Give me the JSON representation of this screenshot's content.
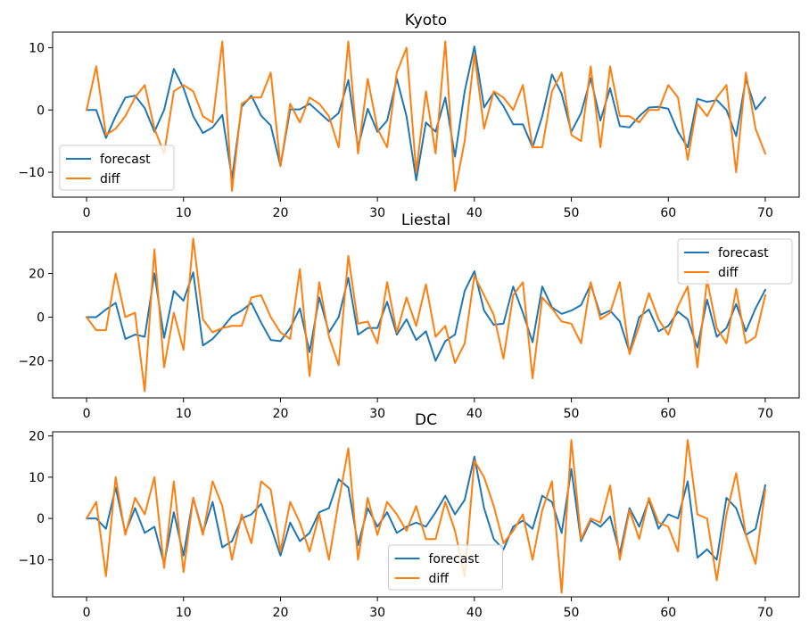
{
  "colors": {
    "forecast": "#1f77b4",
    "diff": "#ff7f0e"
  },
  "chart_data": [
    {
      "type": "line",
      "title": "Kyoto",
      "xlim": [
        -3.5,
        73.5
      ],
      "ylim": [
        -14,
        12.5
      ],
      "xticks": [
        0,
        10,
        20,
        30,
        40,
        50,
        60,
        70
      ],
      "yticks": [
        -10,
        0,
        10
      ],
      "legend_position": "lower-left",
      "grid": false,
      "x": [
        0,
        1,
        2,
        3,
        4,
        5,
        6,
        7,
        8,
        9,
        10,
        11,
        12,
        13,
        14,
        15,
        16,
        17,
        18,
        19,
        20,
        21,
        22,
        23,
        24,
        25,
        26,
        27,
        28,
        29,
        30,
        31,
        32,
        33,
        34,
        35,
        36,
        37,
        38,
        39,
        40,
        41,
        42,
        43,
        44,
        45,
        46,
        47,
        48,
        49,
        50,
        51,
        52,
        53,
        54,
        55,
        56,
        57,
        58,
        59,
        60,
        61,
        62,
        63,
        64,
        65,
        66,
        67,
        68,
        69,
        70
      ],
      "series": [
        {
          "name": "forecast",
          "color_key": "forecast",
          "values": [
            0,
            0,
            -4.5,
            -1,
            2,
            2.3,
            0.3,
            -3.5,
            0,
            6.6,
            3.5,
            -1,
            -3.7,
            -2.8,
            -0.8,
            -11,
            0.5,
            2.3,
            -0.9,
            -2.5,
            -9,
            0.1,
            0.1,
            1,
            -0.4,
            -1.8,
            -0.5,
            4.8,
            -6,
            0.2,
            -3.5,
            -1.7,
            5,
            -1,
            -11.3,
            -2,
            -3.5,
            2,
            -7.5,
            3,
            10.2,
            0.4,
            2.8,
            0.6,
            -2.3,
            -2.3,
            -6,
            -1,
            5.7,
            2.6,
            -3.5,
            -0.5,
            5.1,
            -1.7,
            3.5,
            -2.6,
            -2.8,
            -1,
            0.4,
            0.5,
            0.2,
            -3.5,
            -6,
            1.8,
            1.3,
            1.6,
            0,
            -4.2,
            5,
            0.1,
            2
          ]
        },
        {
          "name": "diff",
          "color_key": "diff",
          "values": [
            0,
            7,
            -4,
            -3,
            -1,
            2,
            4,
            -3,
            -7,
            3,
            4,
            3,
            -1,
            -2,
            11,
            -13,
            1,
            2,
            2,
            6,
            -9,
            1,
            -2,
            2,
            1,
            -1,
            -6,
            11,
            -7,
            5,
            -3,
            -6,
            6,
            10,
            -10,
            3,
            -7,
            11,
            -13,
            -5,
            9,
            -3,
            3,
            2,
            0,
            4,
            -6,
            -6,
            3,
            6,
            -4,
            -5,
            7,
            -6,
            7,
            -1,
            -1,
            -2,
            0,
            0,
            4,
            2,
            -8,
            1,
            -1,
            2,
            4,
            -10,
            6,
            -3,
            -7
          ]
        }
      ]
    },
    {
      "type": "line",
      "title": "Liestal",
      "xlim": [
        -3.5,
        73.5
      ],
      "ylim": [
        -37,
        39
      ],
      "xticks": [
        0,
        10,
        20,
        30,
        40,
        50,
        60,
        70
      ],
      "yticks": [
        -20,
        0,
        20
      ],
      "legend_position": "upper-right",
      "grid": false,
      "x": [
        0,
        1,
        2,
        3,
        4,
        5,
        6,
        7,
        8,
        9,
        10,
        11,
        12,
        13,
        14,
        15,
        16,
        17,
        18,
        19,
        20,
        21,
        22,
        23,
        24,
        25,
        26,
        27,
        28,
        29,
        30,
        31,
        32,
        33,
        34,
        35,
        36,
        37,
        38,
        39,
        40,
        41,
        42,
        43,
        44,
        45,
        46,
        47,
        48,
        49,
        50,
        51,
        52,
        53,
        54,
        55,
        56,
        57,
        58,
        59,
        60,
        61,
        62,
        63,
        64,
        65,
        66,
        67,
        68,
        69,
        70
      ],
      "series": [
        {
          "name": "forecast",
          "color_key": "forecast",
          "values": [
            0,
            0,
            3.5,
            6.5,
            -10,
            -8,
            -9,
            20,
            -9.5,
            12,
            7.5,
            20.5,
            -13,
            -10,
            -5,
            0.5,
            3,
            6.5,
            -2.5,
            -10.5,
            -11,
            -5,
            4,
            -16,
            9,
            -7,
            0,
            18,
            -8,
            -5,
            -5,
            7,
            -8,
            -1,
            -10.5,
            -6.5,
            -20,
            -11,
            -8,
            12,
            21,
            3,
            -3.5,
            -3,
            14,
            2,
            -11.5,
            14,
            4.5,
            1.5,
            3,
            5.5,
            15,
            1,
            3,
            -2,
            -16,
            0,
            3.5,
            -6.5,
            -4,
            2.5,
            -1,
            -14,
            8,
            -9,
            -5,
            6,
            -6.5,
            4,
            12.5
          ]
        },
        {
          "name": "diff",
          "color_key": "diff",
          "values": [
            0,
            -6,
            -6,
            20,
            0,
            2,
            -34,
            31,
            -23,
            2,
            -15,
            36,
            -1,
            -7,
            -5,
            -4,
            -4,
            9,
            10,
            0,
            -7,
            -10,
            22,
            -27,
            16,
            -9,
            -22,
            28,
            -3,
            -2,
            -12,
            16,
            -7,
            9,
            -4,
            15,
            -9,
            -4,
            -21,
            -12,
            19,
            10,
            1,
            -19,
            10,
            16,
            -28,
            9,
            4,
            -2,
            -3,
            -12,
            16,
            -1,
            2,
            16,
            -17,
            -4,
            11,
            -1,
            -8,
            5,
            14,
            -23,
            17,
            -5,
            -12,
            13,
            -12,
            -9,
            10
          ]
        }
      ]
    },
    {
      "type": "line",
      "title": "DC",
      "xlim": [
        -3.5,
        73.5
      ],
      "ylim": [
        -19,
        21
      ],
      "xticks": [
        0,
        10,
        20,
        30,
        40,
        50,
        60,
        70
      ],
      "yticks": [
        -10,
        0,
        10,
        20
      ],
      "legend_position": "lower-center",
      "grid": false,
      "x": [
        0,
        1,
        2,
        3,
        4,
        5,
        6,
        7,
        8,
        9,
        10,
        11,
        12,
        13,
        14,
        15,
        16,
        17,
        18,
        19,
        20,
        21,
        22,
        23,
        24,
        25,
        26,
        27,
        28,
        29,
        30,
        31,
        32,
        33,
        34,
        35,
        36,
        37,
        38,
        39,
        40,
        41,
        42,
        43,
        44,
        45,
        46,
        47,
        48,
        49,
        50,
        51,
        52,
        53,
        54,
        55,
        56,
        57,
        58,
        59,
        60,
        61,
        62,
        63,
        64,
        65,
        66,
        67,
        68,
        69,
        70
      ],
      "series": [
        {
          "name": "forecast",
          "color_key": "forecast",
          "values": [
            0,
            0,
            -2.5,
            7.5,
            -3.5,
            2.5,
            -3.5,
            -2,
            -11,
            1.5,
            -9,
            5,
            -3.5,
            4,
            -7,
            -5.5,
            0,
            1,
            3.5,
            -2,
            -9,
            -1,
            -5.5,
            -3.5,
            1.5,
            2.5,
            9.5,
            7.5,
            -6.5,
            2.5,
            -2,
            1.5,
            -3.5,
            -2,
            -1,
            -2,
            1.5,
            5.5,
            1,
            4.5,
            15,
            2.5,
            -5,
            -7.5,
            -2,
            -0.5,
            -2.5,
            5.5,
            4,
            -3.5,
            12,
            -5.5,
            -0.5,
            -2,
            0.5,
            -8.5,
            2.5,
            -2,
            4.5,
            -2.5,
            1,
            0,
            9,
            -9.5,
            -7.5,
            -10,
            5,
            2.5,
            -4,
            -2.5,
            8
          ]
        },
        {
          "name": "diff",
          "color_key": "diff",
          "values": [
            0,
            4,
            -14,
            10,
            -4,
            5,
            1,
            10,
            -12,
            9,
            -13,
            5,
            -4,
            9,
            3,
            -10,
            1,
            -6,
            9,
            7,
            -8,
            4,
            -1,
            -8,
            1,
            -10,
            4,
            17,
            -10,
            5,
            -4,
            4,
            1,
            -3,
            3,
            -5,
            -5,
            4,
            -3,
            -14,
            14,
            10,
            3,
            -6,
            -3,
            1,
            -10,
            2,
            9,
            -18,
            19,
            -5,
            0,
            -1,
            8,
            -10,
            2,
            -5,
            5,
            -1,
            -2,
            -8,
            19,
            1,
            0,
            -15,
            1,
            11,
            -4,
            -11,
            7
          ]
        }
      ]
    }
  ]
}
